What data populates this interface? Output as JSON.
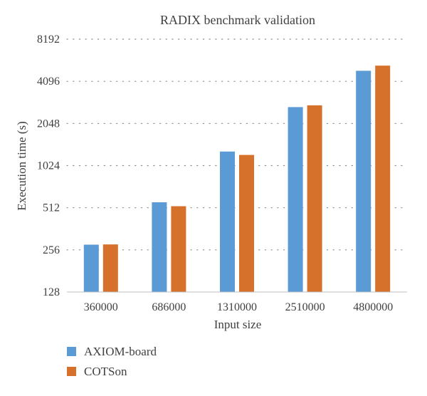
{
  "chart_data": {
    "type": "bar",
    "title": "RADIX benchmark validation",
    "xlabel": "Input size",
    "ylabel": "Execution time (s)",
    "y_scale": "log2",
    "ylim": [
      128,
      8192
    ],
    "yticks": [
      128,
      256,
      512,
      1024,
      2048,
      4096,
      8192
    ],
    "ytick_labels": [
      "128",
      "256",
      "512",
      "1024",
      "2048",
      "4096",
      "8192"
    ],
    "grid": "horizontal-dotted",
    "legend_position": "bottom-left",
    "categories": [
      "360000",
      "686000",
      "1310000",
      "2510000",
      "4800000"
    ],
    "series": [
      {
        "name": "AXIOM-board",
        "color": "#5b9bd5",
        "values": [
          279,
          560,
          1290,
          2680,
          4870
        ]
      },
      {
        "name": "COTSon",
        "color": "#d5712b",
        "values": [
          280,
          525,
          1220,
          2760,
          5300
        ]
      }
    ]
  }
}
